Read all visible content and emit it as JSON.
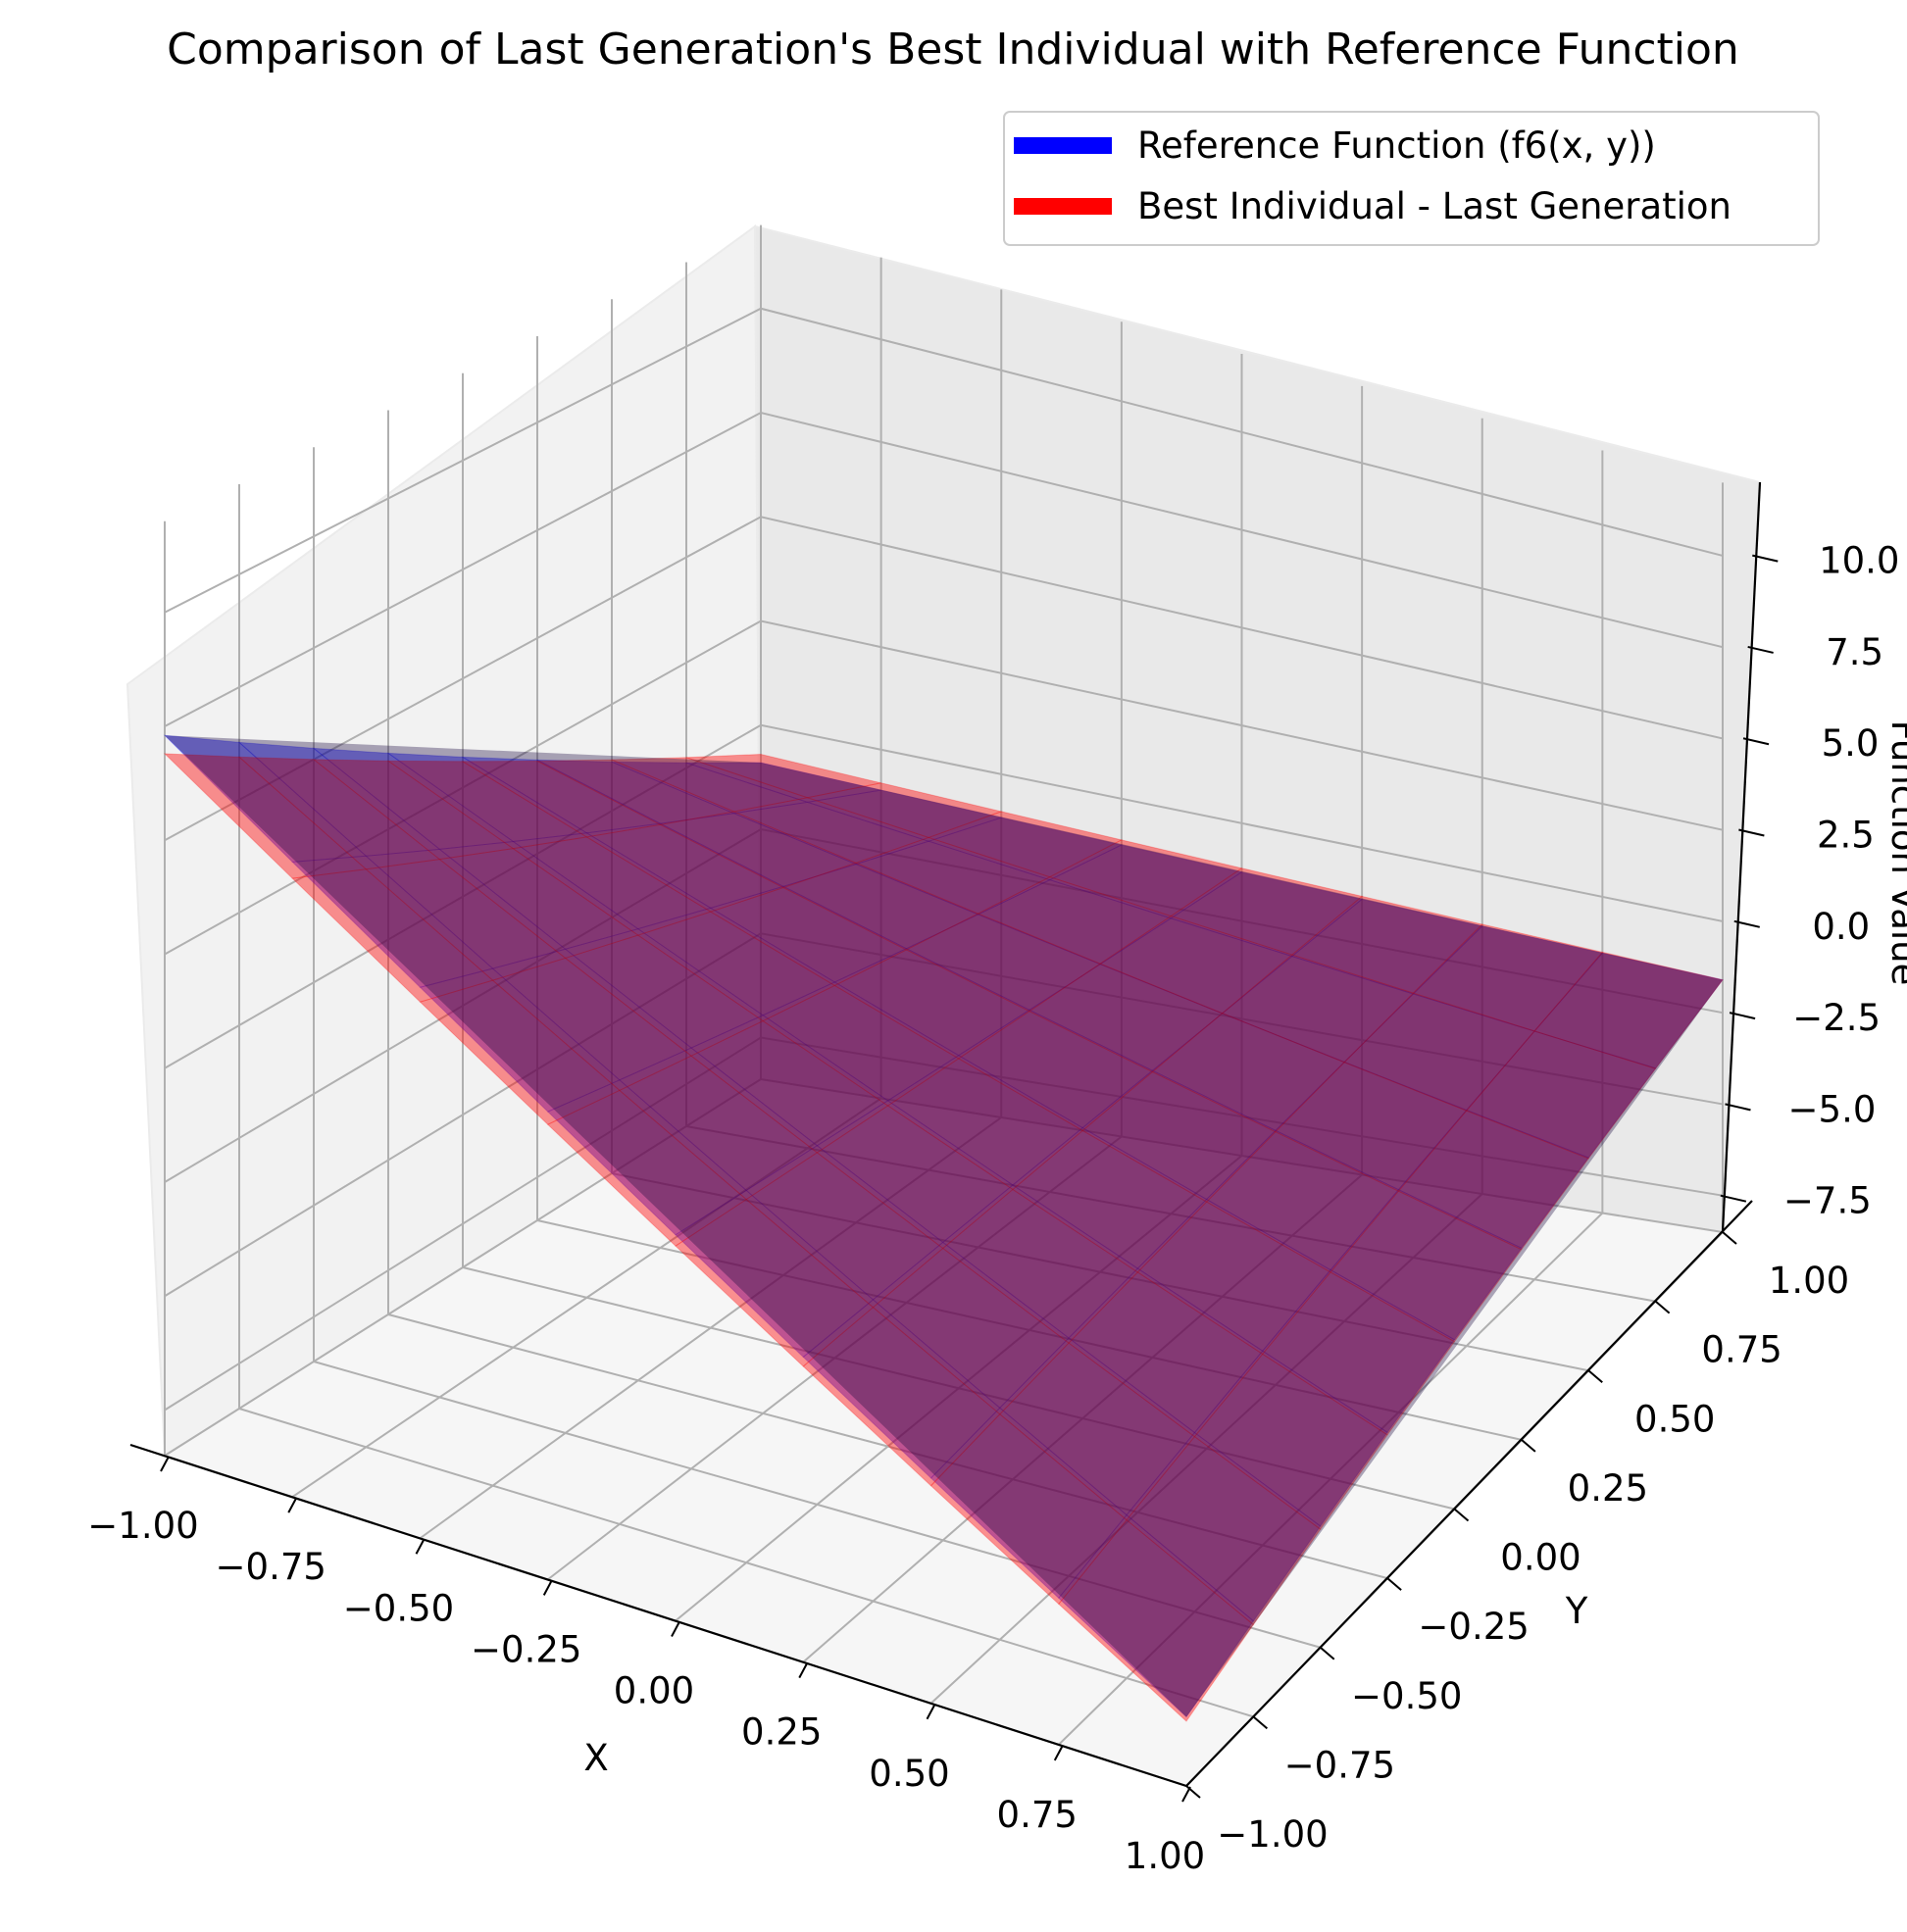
{
  "chart_data": {
    "type": "surface3d",
    "title": "Comparison of Last Generation's Best Individual with Reference Function",
    "xlabel": "X",
    "ylabel": "Y",
    "zlabel": "Function Value",
    "xlim": [
      -1.0,
      1.0
    ],
    "ylim": [
      -1.0,
      1.0
    ],
    "zlim": [
      -8.5,
      12.0
    ],
    "x_ticks": [
      "−1.00",
      "−0.75",
      "−0.50",
      "−0.25",
      "0.00",
      "0.25",
      "0.50",
      "0.75",
      "1.00"
    ],
    "y_ticks": [
      "−1.00",
      "−0.75",
      "−0.50",
      "−0.25",
      "0.00",
      "0.25",
      "0.50",
      "0.75",
      "1.00"
    ],
    "z_ticks": [
      "−7.5",
      "−5.0",
      "−2.5",
      "0.0",
      "2.5",
      "5.0",
      "7.5",
      "10.0"
    ],
    "grid": true,
    "legend_position": "top-right",
    "series": [
      {
        "name": "Reference Function (f6(x, y))",
        "color": "#0000ff",
        "corners": [
          {
            "x": -1.0,
            "y": -1.0,
            "z": 7.3
          },
          {
            "x": -1.0,
            "y": 1.0,
            "z": -0.9
          },
          {
            "x": 1.0,
            "y": 1.0,
            "z": -1.6
          },
          {
            "x": 1.0,
            "y": -1.0,
            "z": -6.9
          }
        ]
      },
      {
        "name": "Best Individual - Last Generation",
        "color": "#ff0000",
        "corners": [
          {
            "x": -1.0,
            "y": -1.0,
            "z": 6.9
          },
          {
            "x": -1.0,
            "y": 1.0,
            "z": -0.7
          },
          {
            "x": 1.0,
            "y": 1.0,
            "z": -1.6
          },
          {
            "x": 1.0,
            "y": -1.0,
            "z": -7.0
          }
        ]
      }
    ]
  }
}
